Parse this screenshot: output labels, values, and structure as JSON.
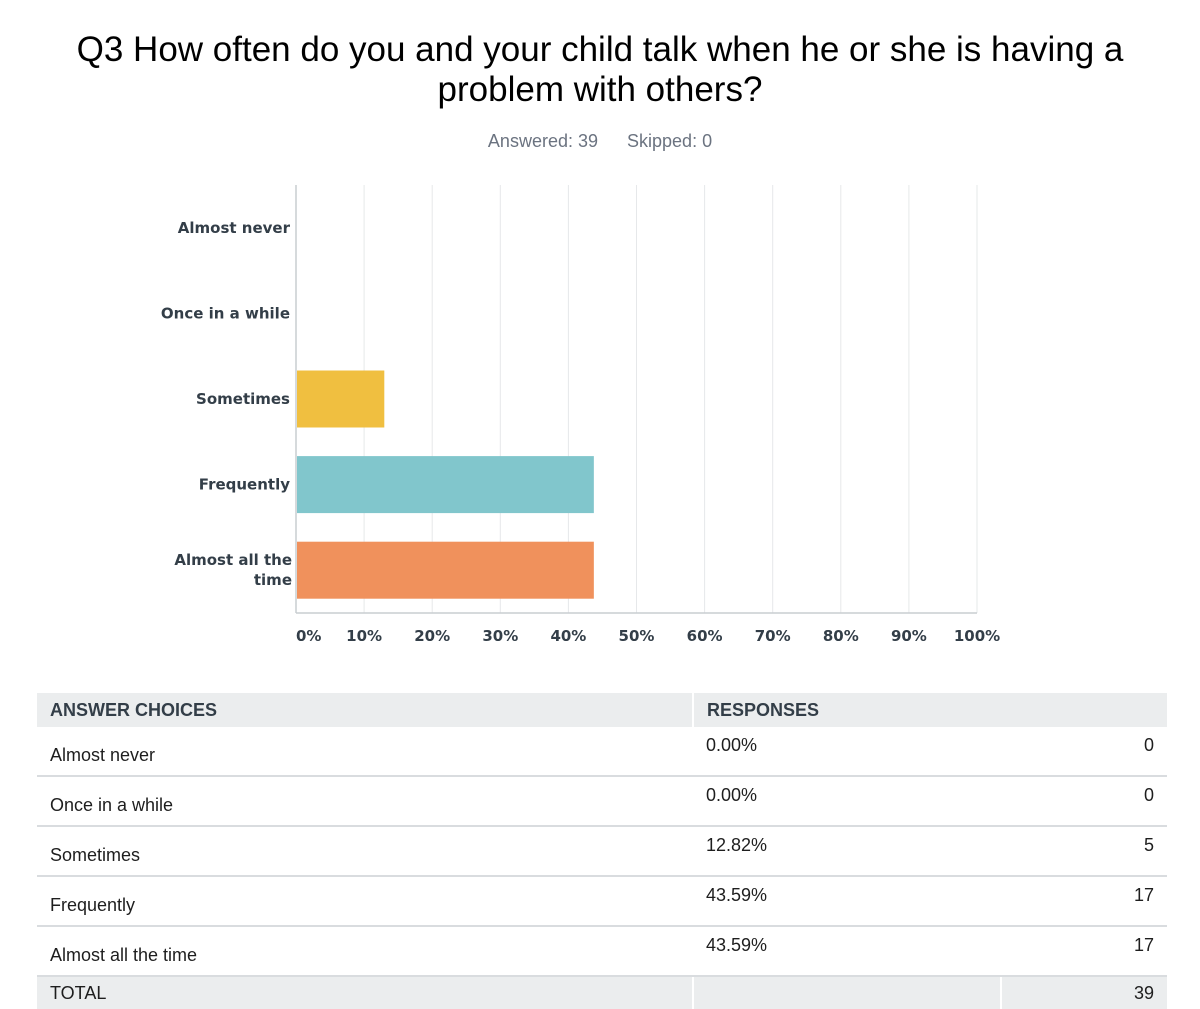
{
  "question": {
    "title": "Q3 How often do you and your child talk when he or she is having a problem with others?",
    "answered": "Answered: 39",
    "skipped": "Skipped: 0"
  },
  "chart_data": {
    "type": "bar",
    "orientation": "horizontal",
    "categories": [
      "Almost never",
      "Once in a while",
      "Sometimes",
      "Frequently",
      "Almost all the time"
    ],
    "values": [
      0,
      0,
      12.82,
      43.59,
      43.59
    ],
    "colors": [
      "#7ea0c6",
      "#a3a9d0",
      "#f0bf40",
      "#81c6cc",
      "#f0915c"
    ],
    "xlim": [
      0,
      100
    ],
    "xticks": [
      "0%",
      "10%",
      "20%",
      "30%",
      "40%",
      "50%",
      "60%",
      "70%",
      "80%",
      "90%",
      "100%"
    ],
    "grid": true
  },
  "table": {
    "headers": [
      "ANSWER CHOICES",
      "RESPONSES"
    ],
    "rows": [
      {
        "choice": "Almost never",
        "percent": "0.00%",
        "count": "0"
      },
      {
        "choice": "Once in a while",
        "percent": "0.00%",
        "count": "0"
      },
      {
        "choice": "Sometimes",
        "percent": "12.82%",
        "count": "5"
      },
      {
        "choice": "Frequently",
        "percent": "43.59%",
        "count": "17"
      },
      {
        "choice": "Almost all the time",
        "percent": "43.59%",
        "count": "17"
      }
    ],
    "total_label": "TOTAL",
    "total_count": "39"
  }
}
